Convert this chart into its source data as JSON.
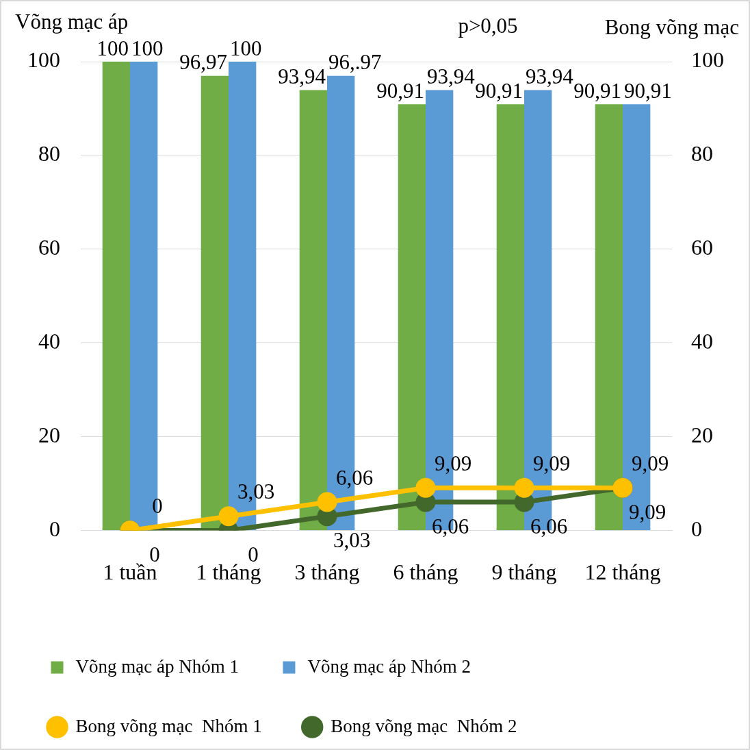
{
  "chart_data": {
    "type": "bar",
    "ylabel": "Võng mạc áp",
    "y2label": "Bong võng mạc",
    "annotations": [
      "p>0,05"
    ],
    "categories": [
      "1 tuần",
      "1 tháng",
      "3 tháng",
      "6 tháng",
      "9 tháng",
      "12 tháng"
    ],
    "series": [
      {
        "name": "Võng mạc áp Nhóm 1",
        "color": "#70ad47",
        "values": [
          100,
          96.97,
          93.94,
          90.91,
          90.91,
          90.91
        ],
        "value_labels": [
          "100",
          "96,97",
          "93,94",
          "90,91",
          "90,91",
          "90,91"
        ]
      },
      {
        "name": "Võng mạc áp Nhóm 2",
        "color": "#5b9bd5",
        "values": [
          100,
          100,
          96.97,
          93.94,
          93.94,
          90.91
        ],
        "value_labels": [
          "100",
          "100",
          "96,.97",
          "93,94",
          "93,94",
          "90,91"
        ]
      },
      {
        "name": "Bong võng mạc  Nhóm 1",
        "type": "line",
        "axis": "y2",
        "color": "#ffc000",
        "values": [
          0,
          3.03,
          6.06,
          9.09,
          9.09,
          9.09
        ],
        "value_labels": [
          "0",
          "3,03",
          "6,06",
          "9,09",
          "9,09",
          "9,09"
        ]
      },
      {
        "name": "Bong võng mạc  Nhóm 2",
        "type": "line",
        "axis": "y2",
        "color": "#43682b",
        "values": [
          0,
          0,
          3.03,
          6.06,
          6.06,
          9.09
        ],
        "value_labels": [
          "0",
          "0",
          "3,03",
          "6,06",
          "6,06",
          "9,09"
        ]
      }
    ],
    "ylim": [
      0,
      100
    ],
    "yticks": [
      0,
      20,
      40,
      60,
      80,
      100
    ],
    "y2lim": [
      0,
      100
    ],
    "y2ticks": [
      0,
      20,
      40,
      60,
      80,
      100
    ],
    "grid": "y",
    "legend": "bottom",
    "marker": "circle",
    "line_style": "solid"
  }
}
